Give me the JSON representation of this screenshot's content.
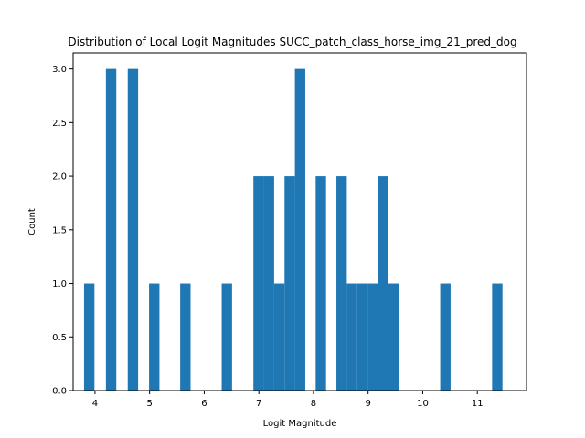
{
  "chart_data": {
    "type": "bar",
    "title": "Distribution of Local Logit Magnitudes SUCC_patch_class_horse_img_21_pred_dog",
    "xlabel": "Logit Magnitude",
    "ylabel": "Count",
    "xlim": [
      3.6,
      11.9
    ],
    "ylim": [
      0.0,
      3.15
    ],
    "x_ticks": [
      4,
      5,
      6,
      7,
      8,
      9,
      10,
      11
    ],
    "y_ticks": [
      0.0,
      0.5,
      1.0,
      1.5,
      2.0,
      2.5,
      3.0
    ],
    "x_tick_labels": [
      "4",
      "5",
      "6",
      "7",
      "8",
      "9",
      "10",
      "11"
    ],
    "y_tick_labels": [
      "0.0",
      "0.5",
      "1.0",
      "1.5",
      "2.0",
      "2.5",
      "3.0"
    ],
    "bin_width": 0.19,
    "bin_starts": [
      3.8,
      4.2,
      4.6,
      4.99,
      5.56,
      6.32,
      6.9,
      7.09,
      7.28,
      7.47,
      7.66,
      8.04,
      8.42,
      8.61,
      8.8,
      8.99,
      9.18,
      9.37,
      10.32,
      11.27
    ],
    "values": [
      1,
      3,
      3,
      1,
      1,
      1,
      2,
      2,
      1,
      2,
      3,
      2,
      2,
      1,
      1,
      1,
      2,
      1,
      1,
      1
    ],
    "bar_color": "#1f77b4",
    "grid": false,
    "legend": "none"
  }
}
